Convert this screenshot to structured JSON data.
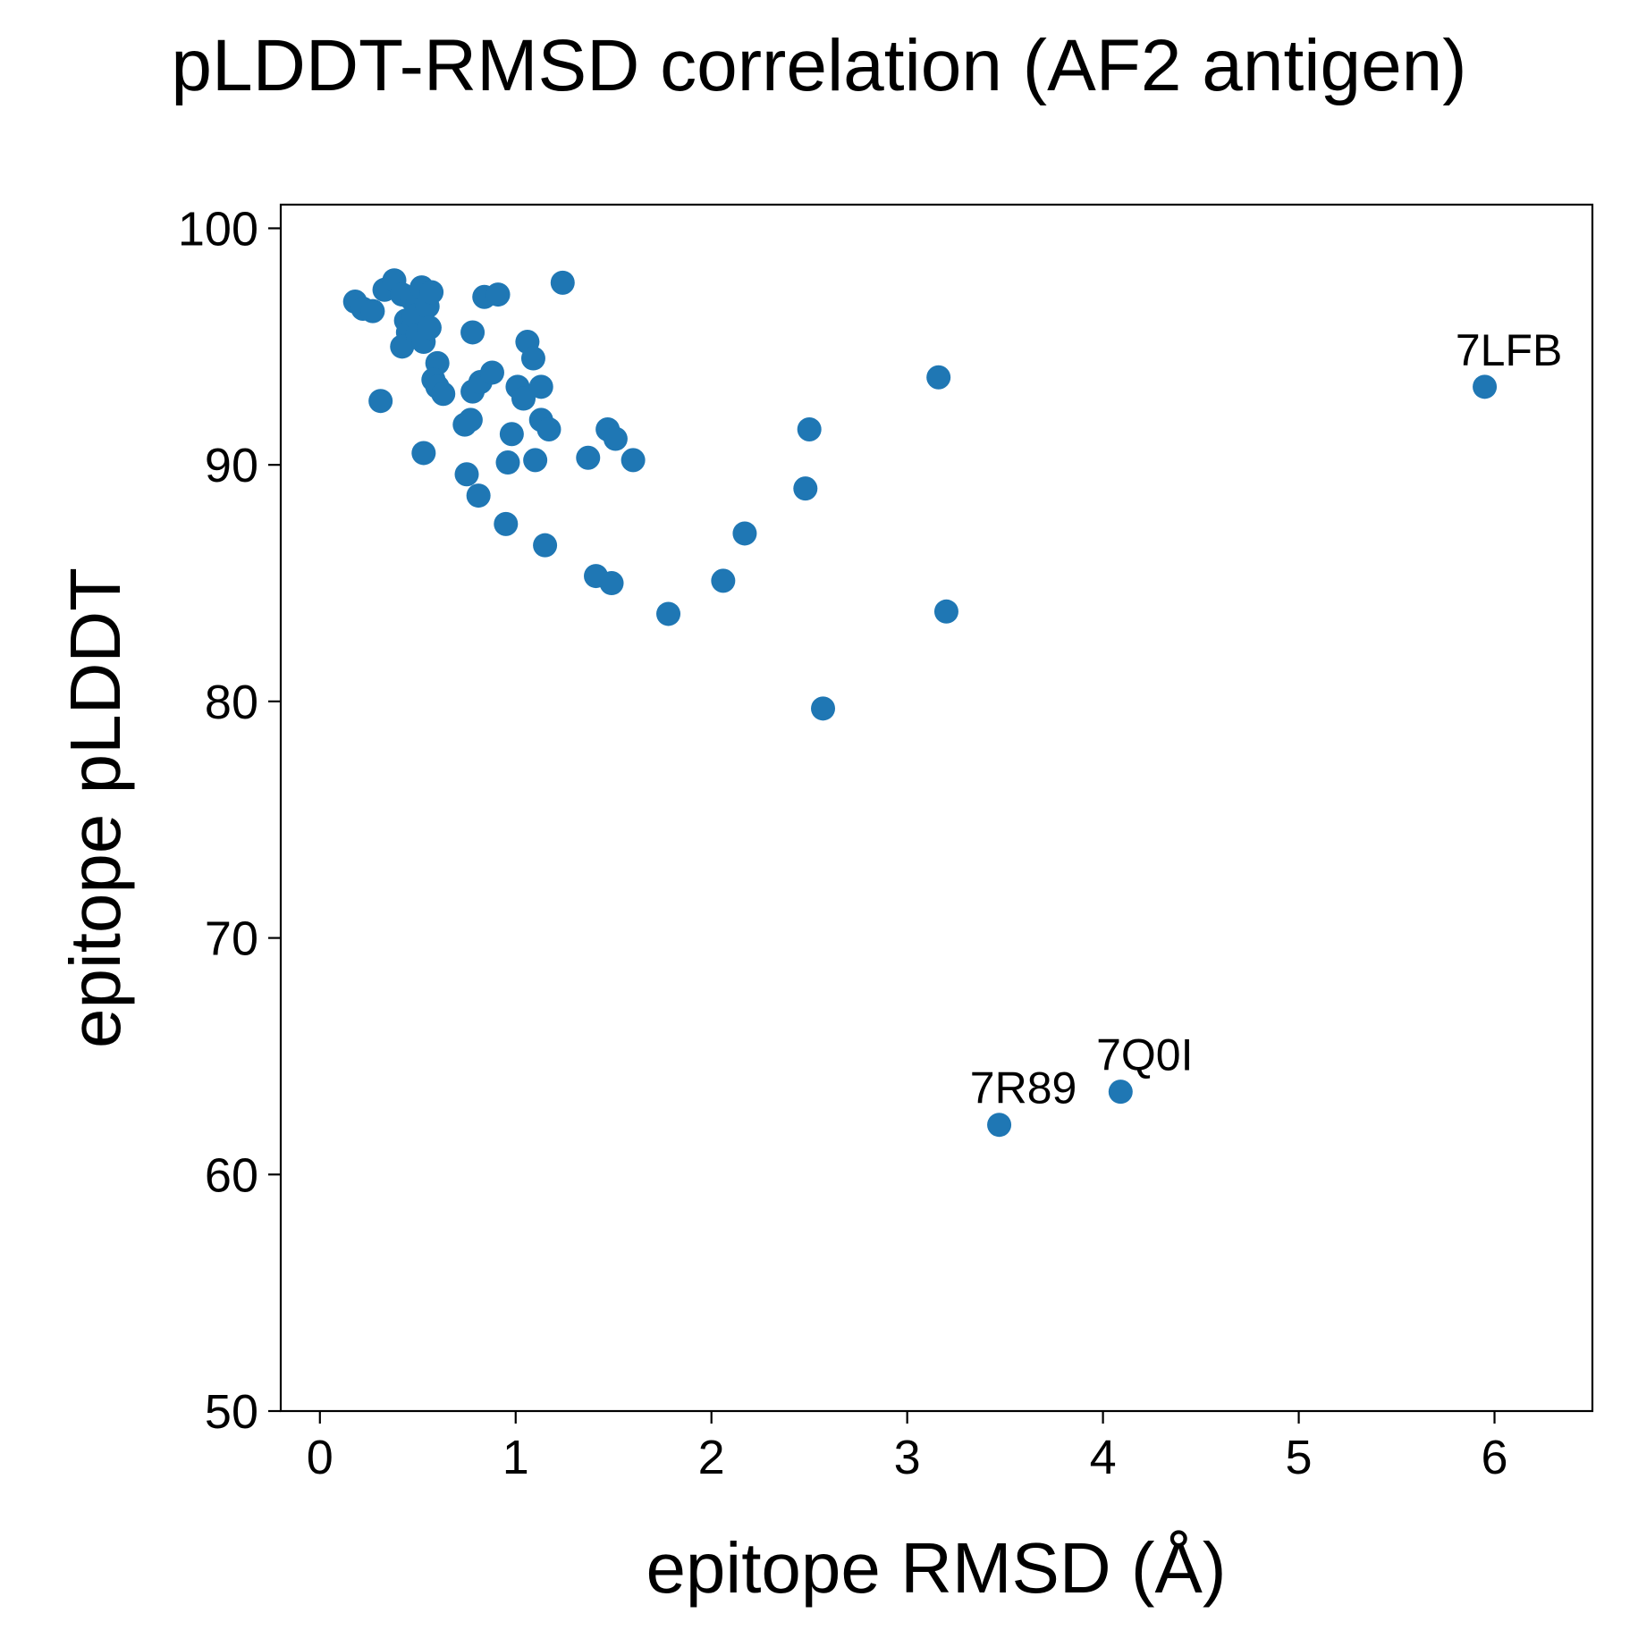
{
  "chart_data": {
    "type": "scatter",
    "title": "pLDDT-RMSD correlation (AF2 antigen)",
    "xlabel": "epitope RMSD (Å)",
    "ylabel": "epitope pLDDT",
    "xlim": [
      -0.2,
      6.5
    ],
    "ylim": [
      50,
      101
    ],
    "xticks": [
      0,
      1,
      2,
      3,
      4,
      5,
      6
    ],
    "yticks": [
      50,
      60,
      70,
      80,
      90,
      100
    ],
    "grid": false,
    "marker_color": "#1f77b4",
    "points": [
      [
        0.18,
        96.9
      ],
      [
        0.22,
        96.6
      ],
      [
        0.27,
        96.5
      ],
      [
        0.33,
        97.4
      ],
      [
        0.38,
        97.8
      ],
      [
        0.42,
        97.2
      ],
      [
        0.44,
        96.1
      ],
      [
        0.45,
        95.6
      ],
      [
        0.42,
        95.0
      ],
      [
        0.47,
        97.0
      ],
      [
        0.5,
        96.8
      ],
      [
        0.52,
        97.5
      ],
      [
        0.48,
        96.3
      ],
      [
        0.55,
        96.7
      ],
      [
        0.57,
        97.3
      ],
      [
        0.5,
        95.5
      ],
      [
        0.53,
        95.2
      ],
      [
        0.56,
        95.8
      ],
      [
        0.6,
        94.3
      ],
      [
        0.58,
        93.6
      ],
      [
        0.6,
        93.3
      ],
      [
        0.63,
        93.0
      ],
      [
        0.31,
        92.7
      ],
      [
        0.53,
        90.5
      ],
      [
        0.78,
        95.6
      ],
      [
        0.84,
        97.1
      ],
      [
        0.91,
        97.2
      ],
      [
        0.78,
        93.1
      ],
      [
        0.82,
        93.5
      ],
      [
        0.88,
        93.9
      ],
      [
        0.74,
        91.7
      ],
      [
        0.77,
        91.9
      ],
      [
        0.75,
        89.6
      ],
      [
        0.81,
        88.7
      ],
      [
        0.96,
        90.1
      ],
      [
        0.98,
        91.3
      ],
      [
        0.95,
        87.5
      ],
      [
        1.01,
        93.3
      ],
      [
        1.04,
        92.8
      ],
      [
        1.06,
        95.2
      ],
      [
        1.09,
        94.5
      ],
      [
        1.13,
        93.3
      ],
      [
        1.13,
        91.9
      ],
      [
        1.17,
        91.5
      ],
      [
        1.1,
        90.2
      ],
      [
        1.15,
        86.6
      ],
      [
        1.24,
        97.7
      ],
      [
        1.37,
        90.3
      ],
      [
        1.41,
        85.3
      ],
      [
        1.47,
        91.5
      ],
      [
        1.51,
        91.1
      ],
      [
        1.49,
        85.0
      ],
      [
        1.6,
        90.2
      ],
      [
        1.78,
        83.7
      ],
      [
        2.06,
        85.1
      ],
      [
        2.17,
        87.1
      ],
      [
        2.48,
        89.0
      ],
      [
        2.5,
        91.5
      ],
      [
        2.57,
        79.7
      ],
      [
        3.16,
        93.7
      ],
      [
        3.2,
        83.8
      ],
      [
        3.47,
        62.1
      ],
      [
        4.09,
        63.5
      ],
      [
        5.95,
        93.3
      ]
    ],
    "annotations": [
      {
        "text": "7LFB",
        "x": 5.95,
        "y": 93.3
      },
      {
        "text": "7R89",
        "x": 3.47,
        "y": 62.1
      },
      {
        "text": "7Q0I",
        "x": 4.09,
        "y": 63.5
      }
    ]
  }
}
